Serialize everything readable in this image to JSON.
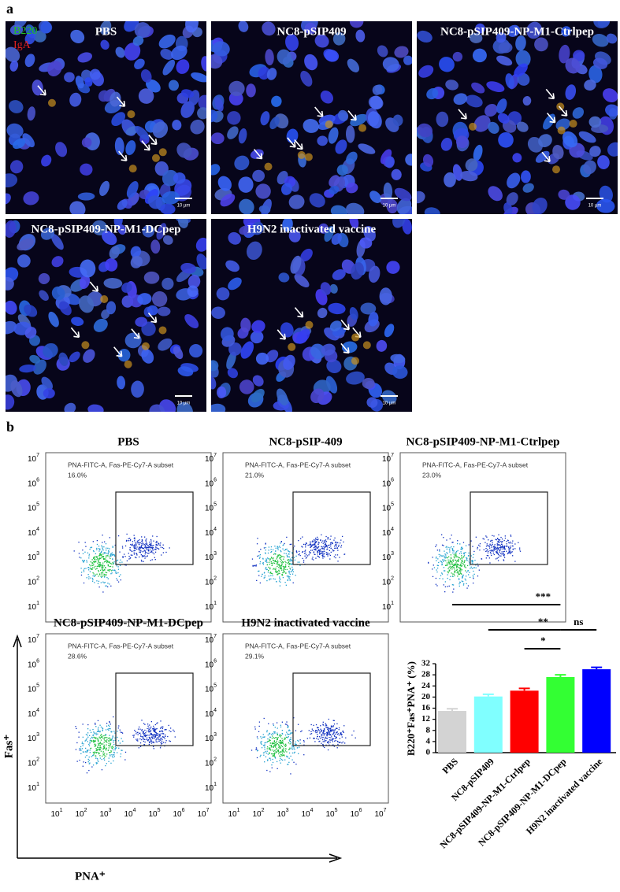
{
  "panel_a": {
    "letter": "a",
    "legend": [
      "B220",
      "IgA"
    ],
    "images": [
      {
        "title": "PBS",
        "scale": "10 µm"
      },
      {
        "title": "NC8-pSIP409",
        "scale": "10 µm"
      },
      {
        "title": "NC8-pSIP409-NP-M1-Ctrlpep",
        "scale": "10 µm"
      },
      {
        "title": "NC8-pSIP409-NP-M1-DCpep",
        "scale": "10 µm"
      },
      {
        "title": "H9N2 inactivated vaccine",
        "scale": "10 µm"
      }
    ]
  },
  "panel_b": {
    "letter": "b",
    "tick_base": "10",
    "tick_exponents": [
      1,
      2,
      3,
      4,
      5,
      6,
      7
    ],
    "y_axis_label": "Fas⁺",
    "x_axis_label": "PNA⁺",
    "plots": [
      {
        "title": "PBS",
        "gate": "PNA-FITC-A, Fas-PE-Cy7-A subset",
        "percent": "16.0%"
      },
      {
        "title": "NC8-pSIP-409",
        "gate": "PNA-FITC-A, Fas-PE-Cy7-A subset",
        "percent": "21.0%"
      },
      {
        "title": "NC8-pSIP409-NP-M1-Ctrlpep",
        "gate": "PNA-FITC-A, Fas-PE-Cy7-A subset",
        "percent": "23.0%"
      },
      {
        "title": "NC8-pSIP409-NP-M1-DCpep",
        "gate": "PNA-FITC-A, Fas-PE-Cy7-A subset",
        "percent": "28.6%"
      },
      {
        "title": "H9N2 inactivated vaccine",
        "gate": "PNA-FITC-A, Fas-PE-Cy7-A subset",
        "percent": "29.1%"
      }
    ]
  },
  "chart_data": {
    "type": "bar",
    "y_label": "B220⁺Fas⁺PNA⁺ (%)",
    "categories": [
      "PBS",
      "NC8-pSIP409",
      "NC8-pSIP409-NP-M1-Ctrlpep",
      "NC8-pSIP409-NP-M1-DCpep",
      "H9N2 inactivated vaccine"
    ],
    "values": [
      15,
      20.2,
      22.3,
      27.2,
      30
    ],
    "errors": [
      0.8,
      0.8,
      0.8,
      0.8,
      0.7
    ],
    "colors": [
      "#d3d3d3",
      "#80ffff",
      "#ff0000",
      "#33ff33",
      "#0000ff"
    ],
    "ylim": [
      0,
      32
    ],
    "yticks": [
      0,
      4,
      8,
      12,
      16,
      20,
      24,
      28,
      32
    ],
    "significance": [
      {
        "label": "***",
        "from": 0,
        "to": 3
      },
      {
        "label": "**",
        "from": 1,
        "to": 3
      },
      {
        "label": "*",
        "from": 2,
        "to": 3
      },
      {
        "label": "ns",
        "from": 3,
        "to": 4
      }
    ]
  }
}
